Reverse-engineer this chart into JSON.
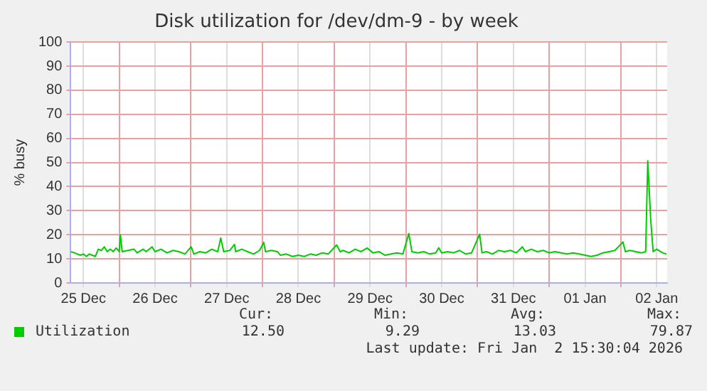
{
  "chart_data": {
    "type": "line",
    "title": "Disk utilization for /dev/dm-9 - by week",
    "ylabel": "% busy",
    "x": [
      "2025-12-25T07:45",
      "2025-12-25T09:00",
      "2025-12-25T11:00",
      "2025-12-25T12:00",
      "2025-12-25T13:00",
      "2025-12-25T14:00",
      "2025-12-25T15:00",
      "2025-12-25T16:00",
      "2025-12-25T17:00",
      "2025-12-25T18:00",
      "2025-12-25T19:00",
      "2025-12-25T20:00",
      "2025-12-25T21:00",
      "2025-12-25T22:00",
      "2025-12-25T23:00",
      "2025-12-26T00:00",
      "2025-12-26T00:24",
      "2025-12-26T01:00",
      "2025-12-26T03:00",
      "2025-12-26T05:00",
      "2025-12-26T06:00",
      "2025-12-26T08:00",
      "2025-12-26T09:00",
      "2025-12-26T11:00",
      "2025-12-26T12:00",
      "2025-12-26T14:00",
      "2025-12-26T16:00",
      "2025-12-26T18:00",
      "2025-12-26T20:00",
      "2025-12-26T22:00",
      "2025-12-27T00:06",
      "2025-12-27T01:00",
      "2025-12-27T03:00",
      "2025-12-27T05:00",
      "2025-12-27T07:00",
      "2025-12-27T09:00",
      "2025-12-27T10:00",
      "2025-12-27T11:00",
      "2025-12-27T13:00",
      "2025-12-27T14:36",
      "2025-12-27T15:00",
      "2025-12-27T17:00",
      "2025-12-27T19:00",
      "2025-12-27T21:00",
      "2025-12-27T23:00",
      "2025-12-28T00:24",
      "2025-12-28T01:00",
      "2025-12-28T03:00",
      "2025-12-28T05:00",
      "2025-12-28T06:00",
      "2025-12-28T08:00",
      "2025-12-28T10:00",
      "2025-12-28T12:00",
      "2025-12-28T14:00",
      "2025-12-28T16:00",
      "2025-12-28T18:00",
      "2025-12-28T20:00",
      "2025-12-28T22:00",
      "2025-12-29T00:48",
      "2025-12-29T02:00",
      "2025-12-29T03:00",
      "2025-12-29T05:00",
      "2025-12-29T07:00",
      "2025-12-29T09:00",
      "2025-12-29T11:00",
      "2025-12-29T13:00",
      "2025-12-29T15:00",
      "2025-12-29T17:00",
      "2025-12-29T19:00",
      "2025-12-29T21:00",
      "2025-12-29T23:00",
      "2025-12-30T01:00",
      "2025-12-30T02:00",
      "2025-12-30T04:00",
      "2025-12-30T06:00",
      "2025-12-30T08:00",
      "2025-12-30T10:00",
      "2025-12-30T11:00",
      "2025-12-30T12:00",
      "2025-12-30T14:00",
      "2025-12-30T16:00",
      "2025-12-30T18:00",
      "2025-12-30T20:00",
      "2025-12-30T22:00",
      "2025-12-31T00:42",
      "2025-12-31T01:30",
      "2025-12-31T03:00",
      "2025-12-31T05:00",
      "2025-12-31T07:00",
      "2025-12-31T09:00",
      "2025-12-31T11:00",
      "2025-12-31T13:00",
      "2025-12-31T15:00",
      "2025-12-31T16:00",
      "2025-12-31T18:00",
      "2025-12-31T20:00",
      "2025-12-31T22:00",
      "2026-01-01T00:00",
      "2026-01-01T02:00",
      "2026-01-01T04:00",
      "2026-01-01T06:00",
      "2026-01-01T08:00",
      "2026-01-01T10:00",
      "2026-01-01T12:00",
      "2026-01-01T14:00",
      "2026-01-01T16:00",
      "2026-01-01T18:00",
      "2026-01-01T20:00",
      "2026-01-01T22:00",
      "2026-01-02T00:42",
      "2026-01-02T01:30",
      "2026-01-02T03:00",
      "2026-01-02T05:00",
      "2026-01-02T07:00",
      "2026-01-02T08:18",
      "2026-01-02T09:00",
      "2026-01-02T10:00",
      "2026-01-02T10:48",
      "2026-01-02T12:00",
      "2026-01-02T14:00",
      "2026-01-02T15:18"
    ],
    "series": [
      {
        "name": "Utilization",
        "color": "#00cc00",
        "values": [
          13,
          12.5,
          11.5,
          12,
          11,
          12,
          11.5,
          11,
          14,
          13.5,
          15,
          13,
          14,
          13,
          14.5,
          13,
          20,
          13,
          13.5,
          14,
          12.5,
          14,
          13,
          15,
          13,
          14,
          12.5,
          13.5,
          13,
          12,
          15,
          12,
          13,
          12.5,
          14,
          13,
          18.7,
          13,
          13.5,
          16,
          13,
          14,
          13,
          12,
          13.5,
          16.8,
          13,
          13.5,
          13,
          11.5,
          12,
          11,
          11.5,
          11,
          12,
          11.5,
          12.5,
          12,
          15.8,
          13,
          13.5,
          12.5,
          14,
          13,
          14.5,
          12.5,
          13,
          11.5,
          12,
          12.5,
          12,
          20.5,
          13,
          12.5,
          13,
          12,
          12.5,
          14.6,
          12.5,
          13,
          12.5,
          13.5,
          12,
          12.5,
          20.2,
          12.5,
          13,
          12,
          13.5,
          13,
          13.5,
          12.5,
          15,
          13,
          14,
          13,
          13.5,
          12.5,
          13,
          12.5,
          12,
          12.5,
          12,
          11.5,
          11,
          11.5,
          12.5,
          13,
          13.5,
          17,
          13,
          13.5,
          13,
          12.5,
          13,
          50.7,
          26,
          13,
          14,
          12.5,
          12
        ]
      }
    ],
    "xlim": [
      "2025-12-25T07:45",
      "2026-01-02T15:30"
    ],
    "xticks": [
      {
        "value": "2025-12-25T12:00",
        "label": "25 Dec"
      },
      {
        "value": "2025-12-26T00:00",
        "label": null
      },
      {
        "value": "2025-12-26T12:00",
        "label": "26 Dec"
      },
      {
        "value": "2025-12-27T00:00",
        "label": null
      },
      {
        "value": "2025-12-27T12:00",
        "label": "27 Dec"
      },
      {
        "value": "2025-12-28T00:00",
        "label": null
      },
      {
        "value": "2025-12-28T12:00",
        "label": "28 Dec"
      },
      {
        "value": "2025-12-29T00:00",
        "label": null
      },
      {
        "value": "2025-12-29T12:00",
        "label": "29 Dec"
      },
      {
        "value": "2025-12-30T00:00",
        "label": null
      },
      {
        "value": "2025-12-30T12:00",
        "label": "30 Dec"
      },
      {
        "value": "2025-12-31T00:00",
        "label": null
      },
      {
        "value": "2025-12-31T12:00",
        "label": "31 Dec"
      },
      {
        "value": "2026-01-01T00:00",
        "label": null
      },
      {
        "value": "2026-01-01T12:00",
        "label": "01 Jan"
      },
      {
        "value": "2026-01-02T00:00",
        "label": null
      },
      {
        "value": "2026-01-02T12:00",
        "label": "02 Jan"
      }
    ],
    "ylim": [
      0,
      100
    ],
    "yticks": [
      0,
      10,
      20,
      30,
      40,
      50,
      60,
      70,
      80,
      90,
      100
    ],
    "grid": true,
    "legend": "bottom",
    "marker": "none",
    "line_style": "solid",
    "annotations": [
      "Cur:",
      "Min:",
      "Avg:",
      "Max:",
      "12.50",
      "9.29",
      "13.03",
      "79.87",
      "Last update: Fri Jan  2 15:30:04 2026"
    ]
  }
}
